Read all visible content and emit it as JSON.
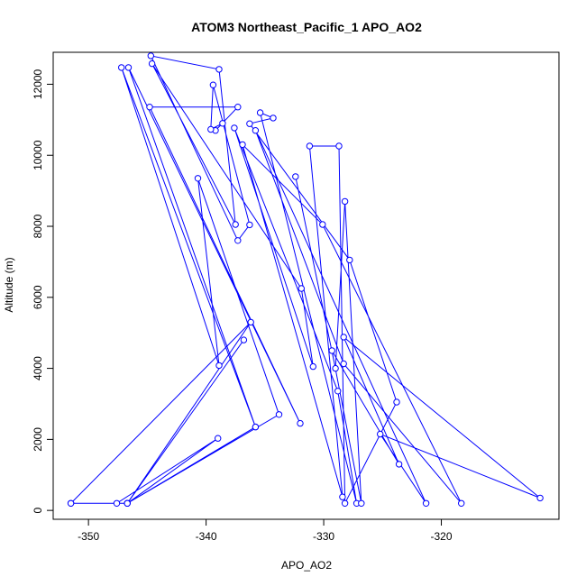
{
  "chart_data": {
    "type": "line",
    "title": "ATOM3 Northeast_Pacific_1 APO_AO2",
    "xlabel": "APO_AO2",
    "ylabel": "Altitude (m)",
    "xlim": [
      -353.0,
      -310.0
    ],
    "ylim": [
      -250,
      12900
    ],
    "x_ticks": [
      -350,
      -340,
      -330,
      -320
    ],
    "x_tick_labels": [
      "-350",
      "-340",
      "-330",
      "-320"
    ],
    "y_ticks": [
      0,
      2000,
      4000,
      6000,
      8000,
      10000,
      12000
    ],
    "y_tick_labels": [
      "0",
      "2000",
      "4000",
      "6000",
      "8000",
      "10000",
      "12000"
    ],
    "series_color": "#0000ff",
    "points": [
      [
        -351.5,
        200
      ],
      [
        -347.6,
        200
      ],
      [
        -339.0,
        2030
      ],
      [
        -346.7,
        200
      ],
      [
        -336.2,
        5300
      ],
      [
        -351.5,
        200
      ],
      [
        -346.7,
        200
      ],
      [
        -336.8,
        4800
      ],
      [
        -346.7,
        200
      ],
      [
        -335.8,
        2350
      ],
      [
        -346.7,
        200
      ],
      [
        -333.8,
        2700
      ],
      [
        -340.7,
        9350
      ],
      [
        -338.9,
        4080
      ],
      [
        -347.2,
        12470
      ],
      [
        -335.8,
        2350
      ],
      [
        -346.6,
        12470
      ],
      [
        -332.0,
        2450
      ],
      [
        -344.8,
        11360
      ],
      [
        -337.3,
        11360
      ],
      [
        -339.2,
        10700
      ],
      [
        -338.6,
        10900
      ],
      [
        -339.6,
        10730
      ],
      [
        -339.4,
        11980
      ],
      [
        -336.3,
        8040
      ],
      [
        -337.3,
        7600
      ],
      [
        -344.7,
        12800
      ],
      [
        -338.9,
        12420
      ],
      [
        -337.5,
        8050
      ],
      [
        -344.6,
        12580
      ],
      [
        -331.9,
        6250
      ],
      [
        -330.9,
        4050
      ],
      [
        -337.6,
        10770
      ],
      [
        -328.8,
        3360
      ],
      [
        -327.2,
        200
      ],
      [
        -335.4,
        11200
      ],
      [
        -334.3,
        11050
      ],
      [
        -336.3,
        10890
      ],
      [
        -327.8,
        7050
      ],
      [
        -323.8,
        3050
      ],
      [
        -328.2,
        200
      ],
      [
        -328.7,
        10260
      ],
      [
        -331.2,
        10260
      ],
      [
        -328.4,
        380
      ],
      [
        -336.9,
        10300
      ],
      [
        -330.1,
        8050
      ],
      [
        -318.3,
        200
      ],
      [
        -328.3,
        4130
      ],
      [
        -335.8,
        10700
      ],
      [
        -321.3,
        200
      ],
      [
        -325.2,
        2150
      ],
      [
        -311.6,
        350
      ],
      [
        -328.3,
        4880
      ],
      [
        -323.6,
        1300
      ],
      [
        -329.3,
        4500
      ],
      [
        -326.8,
        200
      ],
      [
        -328.2,
        8700
      ],
      [
        -329.0,
        4000
      ],
      [
        -332.4,
        9400
      ]
    ]
  }
}
